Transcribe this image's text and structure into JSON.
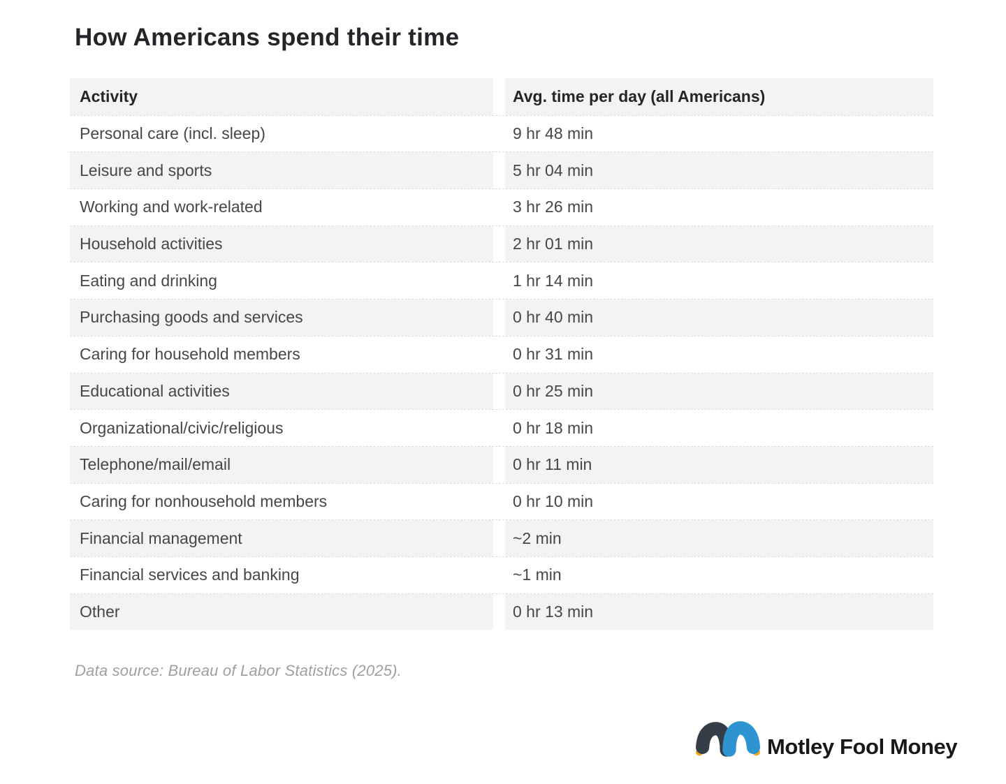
{
  "title": "How Americans spend their time",
  "table": {
    "columns": [
      "Activity",
      "Avg. time per day (all Americans)"
    ],
    "rows": [
      {
        "activity": "Personal care (incl. sleep)",
        "time": "9 hr 48 min"
      },
      {
        "activity": "Leisure and sports",
        "time": "5 hr 04 min"
      },
      {
        "activity": "Working and work-related",
        "time": "3 hr 26 min"
      },
      {
        "activity": "Household activities",
        "time": "2 hr 01 min"
      },
      {
        "activity": "Eating and drinking",
        "time": "1 hr 14 min"
      },
      {
        "activity": "Purchasing goods and services",
        "time": "0 hr 40 min"
      },
      {
        "activity": "Caring for household members",
        "time": "0 hr 31 min"
      },
      {
        "activity": "Educational activities",
        "time": "0 hr 25 min"
      },
      {
        "activity": "Organizational/civic/religious",
        "time": "0 hr 18 min"
      },
      {
        "activity": "Telephone/mail/email",
        "time": "0 hr 11 min"
      },
      {
        "activity": "Caring for nonhousehold members",
        "time": "0 hr 10 min"
      },
      {
        "activity": "Financial management",
        "time": "~2 min"
      },
      {
        "activity": "Financial services and banking",
        "time": "~1 min"
      },
      {
        "activity": "Other",
        "time": "0 hr 13 min"
      }
    ]
  },
  "footer": {
    "source": "Data source: Bureau of Labor Statistics (2025)."
  },
  "logo": {
    "text": "Motley Fool Money",
    "jester_cap_icon": "jester-cap-icon"
  },
  "colors": {
    "row_stripe": "#f3f3f4",
    "header_text": "#232528",
    "body_text": "#44474a",
    "source_text": "#9da0a3",
    "logo_text": "#17181b",
    "logo_dark_lobe": "#353d47",
    "logo_blue_lobe": "#2d93d1",
    "logo_gold_ball": "#f2a71f"
  },
  "chart_data": {
    "type": "table",
    "title": "How Americans spend their time",
    "columns": [
      "Activity",
      "Avg. time per day (all Americans)"
    ],
    "rows": [
      [
        "Personal care (incl. sleep)",
        "9 hr 48 min"
      ],
      [
        "Leisure and sports",
        "5 hr 04 min"
      ],
      [
        "Working and work-related",
        "3 hr 26 min"
      ],
      [
        "Household activities",
        "2 hr 01 min"
      ],
      [
        "Eating and drinking",
        "1 hr 14 min"
      ],
      [
        "Purchasing goods and services",
        "0 hr 40 min"
      ],
      [
        "Caring for household members",
        "0 hr 31 min"
      ],
      [
        "Educational activities",
        "0 hr 25 min"
      ],
      [
        "Organizational/civic/religious",
        "0 hr 18 min"
      ],
      [
        "Telephone/mail/email",
        "0 hr 11 min"
      ],
      [
        "Caring for nonhousehold members",
        "0 hr 10 min"
      ],
      [
        "Financial management",
        "~2 min"
      ],
      [
        "Financial services and banking",
        "~1 min"
      ],
      [
        "Other",
        "0 hr 13 min"
      ]
    ],
    "values_minutes": [
      588,
      304,
      206,
      121,
      74,
      40,
      31,
      25,
      18,
      11,
      10,
      2,
      1,
      13
    ],
    "source": "Data source: Bureau of Labor Statistics (2025)."
  }
}
